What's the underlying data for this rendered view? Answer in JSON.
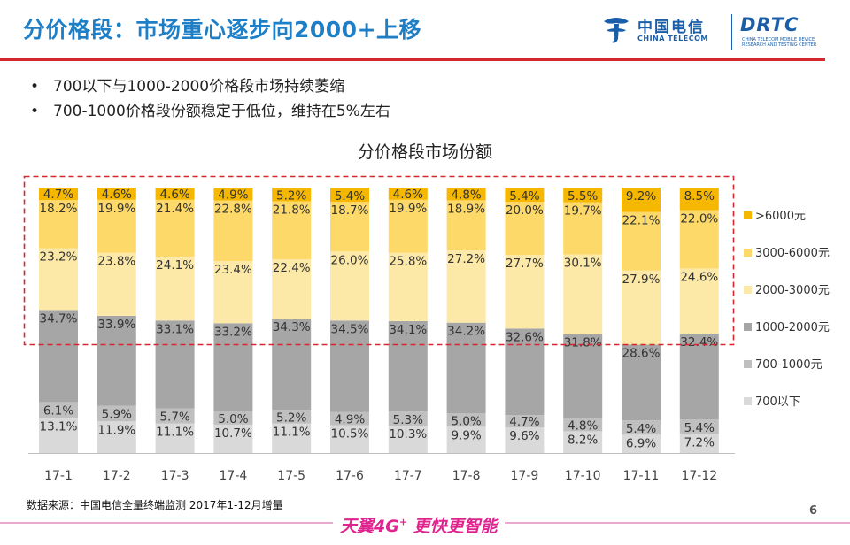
{
  "header": {
    "title": "分价格段：市场重心逐步向2000+上移",
    "logo_name_cn": "中国电信",
    "logo_name_en": "CHINA TELECOM",
    "logo2_text": "DRTC",
    "logo2_sub": "CHINA TELECOM MOBILE DEVICE RESEARCH AND TESTING CENTER"
  },
  "bullets": [
    "700以下与1000-2000价格段市场持续萎缩",
    "700-1000价格段份额稳定于低位，维持在5%左右"
  ],
  "chart_data": {
    "type": "bar",
    "stacked": true,
    "title": "分价格段市场份额",
    "unit": "%",
    "categories": [
      "17-1",
      "17-2",
      "17-3",
      "17-4",
      "17-5",
      "17-6",
      "17-7",
      "17-8",
      "17-9",
      "17-10",
      "17-11",
      "17-12"
    ],
    "series": [
      {
        "name": "700以下",
        "color": "#d9d9d9",
        "values": [
          13.1,
          11.9,
          11.1,
          10.7,
          11.1,
          10.5,
          10.3,
          9.9,
          9.6,
          8.2,
          6.9,
          7.2
        ]
      },
      {
        "name": "700-1000元",
        "color": "#bfbfbf",
        "values": [
          6.1,
          5.9,
          5.7,
          5.0,
          5.2,
          4.9,
          5.3,
          5.0,
          4.7,
          4.8,
          5.4,
          5.4
        ]
      },
      {
        "name": "1000-2000元",
        "color": "#a6a6a6",
        "values": [
          34.7,
          33.9,
          33.1,
          33.2,
          34.3,
          34.5,
          34.1,
          34.2,
          32.6,
          31.8,
          28.6,
          32.4
        ]
      },
      {
        "name": "2000-3000元",
        "color": "#fde9a7",
        "values": [
          23.2,
          23.8,
          24.1,
          23.4,
          22.4,
          26.0,
          25.8,
          27.2,
          27.7,
          30.1,
          27.9,
          24.6
        ]
      },
      {
        "name": "3000-6000元",
        "color": "#fdd969",
        "values": [
          18.2,
          19.9,
          21.4,
          22.8,
          21.8,
          18.7,
          19.9,
          18.9,
          20.0,
          19.7,
          22.1,
          22.0
        ]
      },
      {
        "name": ">6000元",
        "color": "#f5b700",
        "values": [
          4.7,
          4.6,
          4.6,
          4.9,
          5.2,
          5.4,
          4.6,
          4.8,
          5.4,
          5.5,
          9.2,
          8.5
        ]
      }
    ],
    "legend_order": [
      ">6000元",
      "3000-6000元",
      "2000-3000元",
      "1000-2000元",
      "700-1000元",
      "700以下"
    ],
    "legend_position": "right",
    "highlight_box": {
      "color": "#d5282e",
      "style": "dashed",
      "covers": [
        "2000-3000元",
        "3000-6000元",
        ">6000元"
      ]
    },
    "grid": false
  },
  "footer": {
    "source": "数据来源：中国电信全量终端监测 2017年1-12月增量",
    "page_number": "6",
    "slogan": "天翼4G",
    "slogan_sup": "+",
    "slogan_tail": " 更快更智能"
  }
}
